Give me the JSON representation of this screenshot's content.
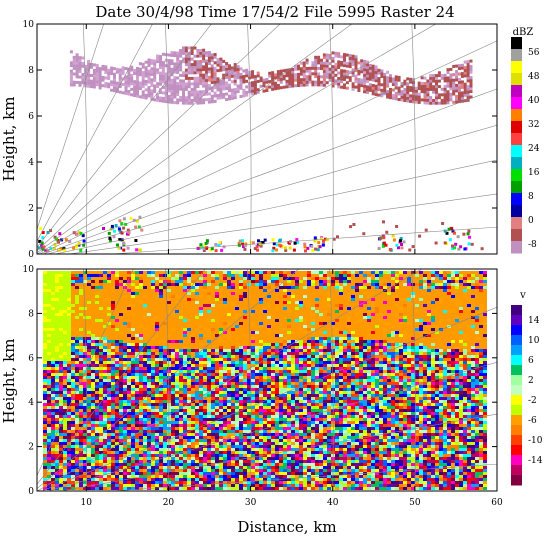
{
  "title": "Date 30/4/98 Time 17/54/2 File 5995 Raster 24",
  "chart_data": [
    {
      "type": "heatmap",
      "panel": "reflectivity",
      "ylabel": "Height, km",
      "xlabel": "",
      "xlim": [
        4,
        60
      ],
      "ylim": [
        0,
        10
      ],
      "xticks": [
        "10",
        "20",
        "30",
        "40",
        "50",
        "60"
      ],
      "yticks": [
        "0",
        "2",
        "4",
        "6",
        "8",
        "10"
      ],
      "colorbar": {
        "unit": "dBZ",
        "tick_labels": [
          "56",
          "48",
          "40",
          "32",
          "24",
          "16",
          "8",
          "0",
          "-8"
        ],
        "colors": [
          "#000000",
          "#a0a0a0",
          "#ffff00",
          "#e0e000",
          "#c000c0",
          "#ff00ff",
          "#ff8000",
          "#e00000",
          "#ff4040",
          "#00ffff",
          "#00b0c0",
          "#00e000",
          "#00a000",
          "#0000ff",
          "#0000a0",
          "#e08080",
          "#b05050",
          "#c090c0"
        ]
      },
      "layers": [
        {
          "desc": "upper cloud layer",
          "x": [
            8,
            57
          ],
          "height_km": [
            6.8,
            9.0
          ],
          "dbz": [
            -8,
            4
          ]
        },
        {
          "desc": "surface clutter",
          "x": [
            4,
            58
          ],
          "height_km": [
            0,
            1.5
          ],
          "dbz": [
            -8,
            20
          ]
        }
      ]
    },
    {
      "type": "heatmap",
      "panel": "velocity",
      "ylabel": "Height, km",
      "xlabel": "Distance, km",
      "xlim": [
        4,
        60
      ],
      "ylim": [
        0,
        10
      ],
      "xticks": [
        "10",
        "20",
        "30",
        "40",
        "50",
        "60"
      ],
      "yticks": [
        "0",
        "2",
        "4",
        "6",
        "8",
        "10"
      ],
      "colorbar": {
        "unit": "v",
        "tick_labels": [
          "14",
          "10",
          "6",
          "2",
          "-2",
          "-6",
          "-10",
          "-14"
        ],
        "colors": [
          "#400080",
          "#6000c0",
          "#0000ff",
          "#0060ff",
          "#00a0ff",
          "#00ffff",
          "#00c060",
          "#a0ffa0",
          "#c0ffc0",
          "#ffff00",
          "#c0ff00",
          "#ffa000",
          "#ff8000",
          "#ff4000",
          "#ff0000",
          "#ff00c0",
          "#c00060",
          "#800040"
        ]
      },
      "layers": [
        {
          "desc": "upper cloud layer",
          "x": [
            8,
            57
          ],
          "height_km": [
            6.8,
            9.0
          ],
          "velocity": [
            -6,
            -2
          ]
        },
        {
          "desc": "noise field",
          "x": [
            4,
            58
          ],
          "height_km": [
            0,
            6.8
          ],
          "velocity": [
            -14,
            14
          ]
        }
      ]
    }
  ]
}
